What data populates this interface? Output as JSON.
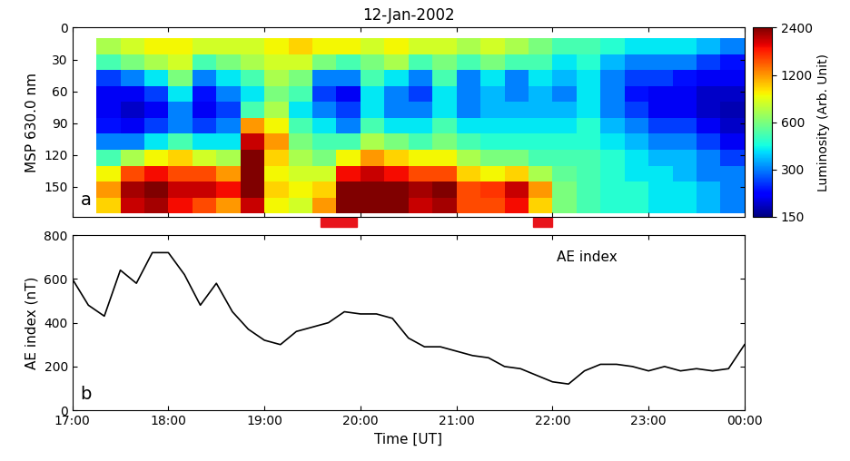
{
  "chart_data": [
    {
      "type": "heatmap",
      "title": "12-Jan-2002",
      "ylabel": "MSP 630.0 nm",
      "panel": "a",
      "x_edges": [
        17.25,
        17.5,
        17.75,
        18.0,
        18.25,
        18.5,
        18.75,
        19.0,
        19.25,
        19.5,
        19.75,
        20.0,
        20.25,
        20.5,
        20.75,
        21.0,
        21.25,
        21.5,
        21.75,
        22.0,
        22.25,
        22.5,
        22.75,
        23.0,
        23.25,
        23.5,
        23.75,
        24.0
      ],
      "y_edges": [
        10,
        25,
        40,
        55,
        70,
        85,
        100,
        115,
        130,
        145,
        160,
        175
      ],
      "cells": [
        [
          700,
          800,
          900,
          900,
          800,
          800,
          800,
          900,
          1000,
          900,
          900,
          800,
          900,
          800,
          800,
          700,
          800,
          700,
          600,
          500,
          500,
          450,
          400,
          400,
          400,
          350,
          300
        ],
        [
          500,
          600,
          700,
          800,
          500,
          600,
          700,
          800,
          800,
          600,
          500,
          600,
          700,
          500,
          600,
          500,
          600,
          500,
          500,
          400,
          450,
          350,
          300,
          300,
          300,
          250,
          220
        ],
        [
          250,
          300,
          400,
          600,
          300,
          400,
          500,
          700,
          600,
          300,
          300,
          500,
          400,
          300,
          500,
          300,
          400,
          300,
          400,
          350,
          400,
          300,
          250,
          250,
          220,
          200,
          200
        ],
        [
          200,
          200,
          250,
          400,
          220,
          300,
          400,
          600,
          500,
          250,
          200,
          400,
          300,
          250,
          400,
          300,
          350,
          300,
          350,
          300,
          400,
          300,
          220,
          200,
          200,
          180,
          180
        ],
        [
          200,
          180,
          200,
          300,
          200,
          250,
          500,
          700,
          400,
          300,
          250,
          400,
          300,
          300,
          400,
          300,
          350,
          350,
          350,
          350,
          400,
          300,
          250,
          200,
          200,
          180,
          170
        ],
        [
          220,
          200,
          250,
          300,
          250,
          300,
          1200,
          900,
          500,
          400,
          300,
          500,
          400,
          400,
          500,
          400,
          400,
          400,
          400,
          400,
          450,
          350,
          300,
          250,
          250,
          200,
          180
        ],
        [
          300,
          300,
          400,
          500,
          400,
          400,
          2000,
          1200,
          600,
          500,
          500,
          700,
          600,
          500,
          600,
          500,
          450,
          450,
          450,
          450,
          450,
          400,
          350,
          300,
          300,
          250,
          200
        ],
        [
          500,
          700,
          900,
          1000,
          800,
          700,
          2400,
          1000,
          700,
          600,
          900,
          1200,
          1000,
          900,
          900,
          700,
          600,
          600,
          500,
          500,
          500,
          450,
          400,
          350,
          350,
          300,
          250
        ],
        [
          900,
          1500,
          1800,
          1500,
          1500,
          1200,
          2400,
          900,
          800,
          800,
          1800,
          2000,
          1800,
          1500,
          1500,
          1000,
          900,
          1000,
          700,
          550,
          500,
          450,
          400,
          400,
          350,
          300,
          300
        ],
        [
          1200,
          2200,
          2400,
          2000,
          2000,
          1800,
          2400,
          1000,
          900,
          1000,
          2400,
          2400,
          2400,
          2200,
          2400,
          1500,
          1600,
          2000,
          1200,
          600,
          500,
          450,
          450,
          400,
          400,
          350,
          300
        ],
        [
          1000,
          2000,
          2200,
          1800,
          1500,
          1200,
          2000,
          900,
          800,
          1200,
          2400,
          2400,
          2400,
          2000,
          2200,
          1500,
          1500,
          1800,
          1000,
          600,
          500,
          450,
          450,
          400,
          400,
          350,
          300
        ]
      ],
      "xlim": [
        17,
        24
      ],
      "xticks": [
        17,
        18,
        19,
        20,
        21,
        22,
        23,
        24
      ],
      "ylim": [
        178,
        0
      ],
      "yticks": [
        0,
        30,
        60,
        90,
        120,
        150
      ],
      "tick_labels": "y",
      "colorbar": {
        "range": [
          150,
          2400
        ],
        "ticks": [
          150,
          300,
          600,
          1200,
          2400
        ],
        "label": "Luminosity (Arb. Unit)"
      },
      "intervals": [
        [
          19.583,
          19.967
        ],
        [
          21.8,
          22.0
        ]
      ],
      "color": "#e8141b"
    },
    {
      "type": "line",
      "xlabel": "Time [UT]",
      "ylabel": "AE index (nT)",
      "panel": "b",
      "annotation": "AE index",
      "x": [
        17.0,
        17.167,
        17.333,
        17.5,
        17.667,
        17.833,
        18.0,
        18.167,
        18.333,
        18.5,
        18.667,
        18.833,
        19.0,
        19.167,
        19.333,
        19.5,
        19.667,
        19.833,
        20.0,
        20.167,
        20.333,
        20.5,
        20.667,
        20.833,
        21.0,
        21.167,
        21.333,
        21.5,
        21.667,
        21.833,
        22.0,
        22.167,
        22.333,
        22.5,
        22.667,
        22.833,
        23.0,
        23.167,
        23.333,
        23.5,
        23.667,
        23.833,
        24.0
      ],
      "values": [
        600,
        480,
        430,
        640,
        580,
        720,
        720,
        620,
        480,
        580,
        450,
        370,
        320,
        300,
        360,
        380,
        400,
        450,
        440,
        440,
        420,
        330,
        290,
        290,
        270,
        250,
        240,
        200,
        190,
        160,
        130,
        120,
        180,
        210,
        210,
        200,
        180,
        200,
        180,
        190,
        180,
        190,
        300
      ],
      "color": "#000000",
      "xlim": [
        17,
        24
      ],
      "xticks": [
        {
          "value": 17,
          "label": "17:00"
        },
        {
          "value": 18,
          "label": "18:00"
        },
        {
          "value": 19,
          "label": "19:00"
        },
        {
          "value": 20,
          "label": "20:00"
        },
        {
          "value": 21,
          "label": "21:00"
        },
        {
          "value": 22,
          "label": "22:00"
        },
        {
          "value": 23,
          "label": "23:00"
        },
        {
          "value": 24,
          "label": "00:00"
        }
      ],
      "ylim": [
        0,
        800
      ],
      "yticks": [
        0,
        200,
        400,
        600,
        800
      ]
    }
  ]
}
